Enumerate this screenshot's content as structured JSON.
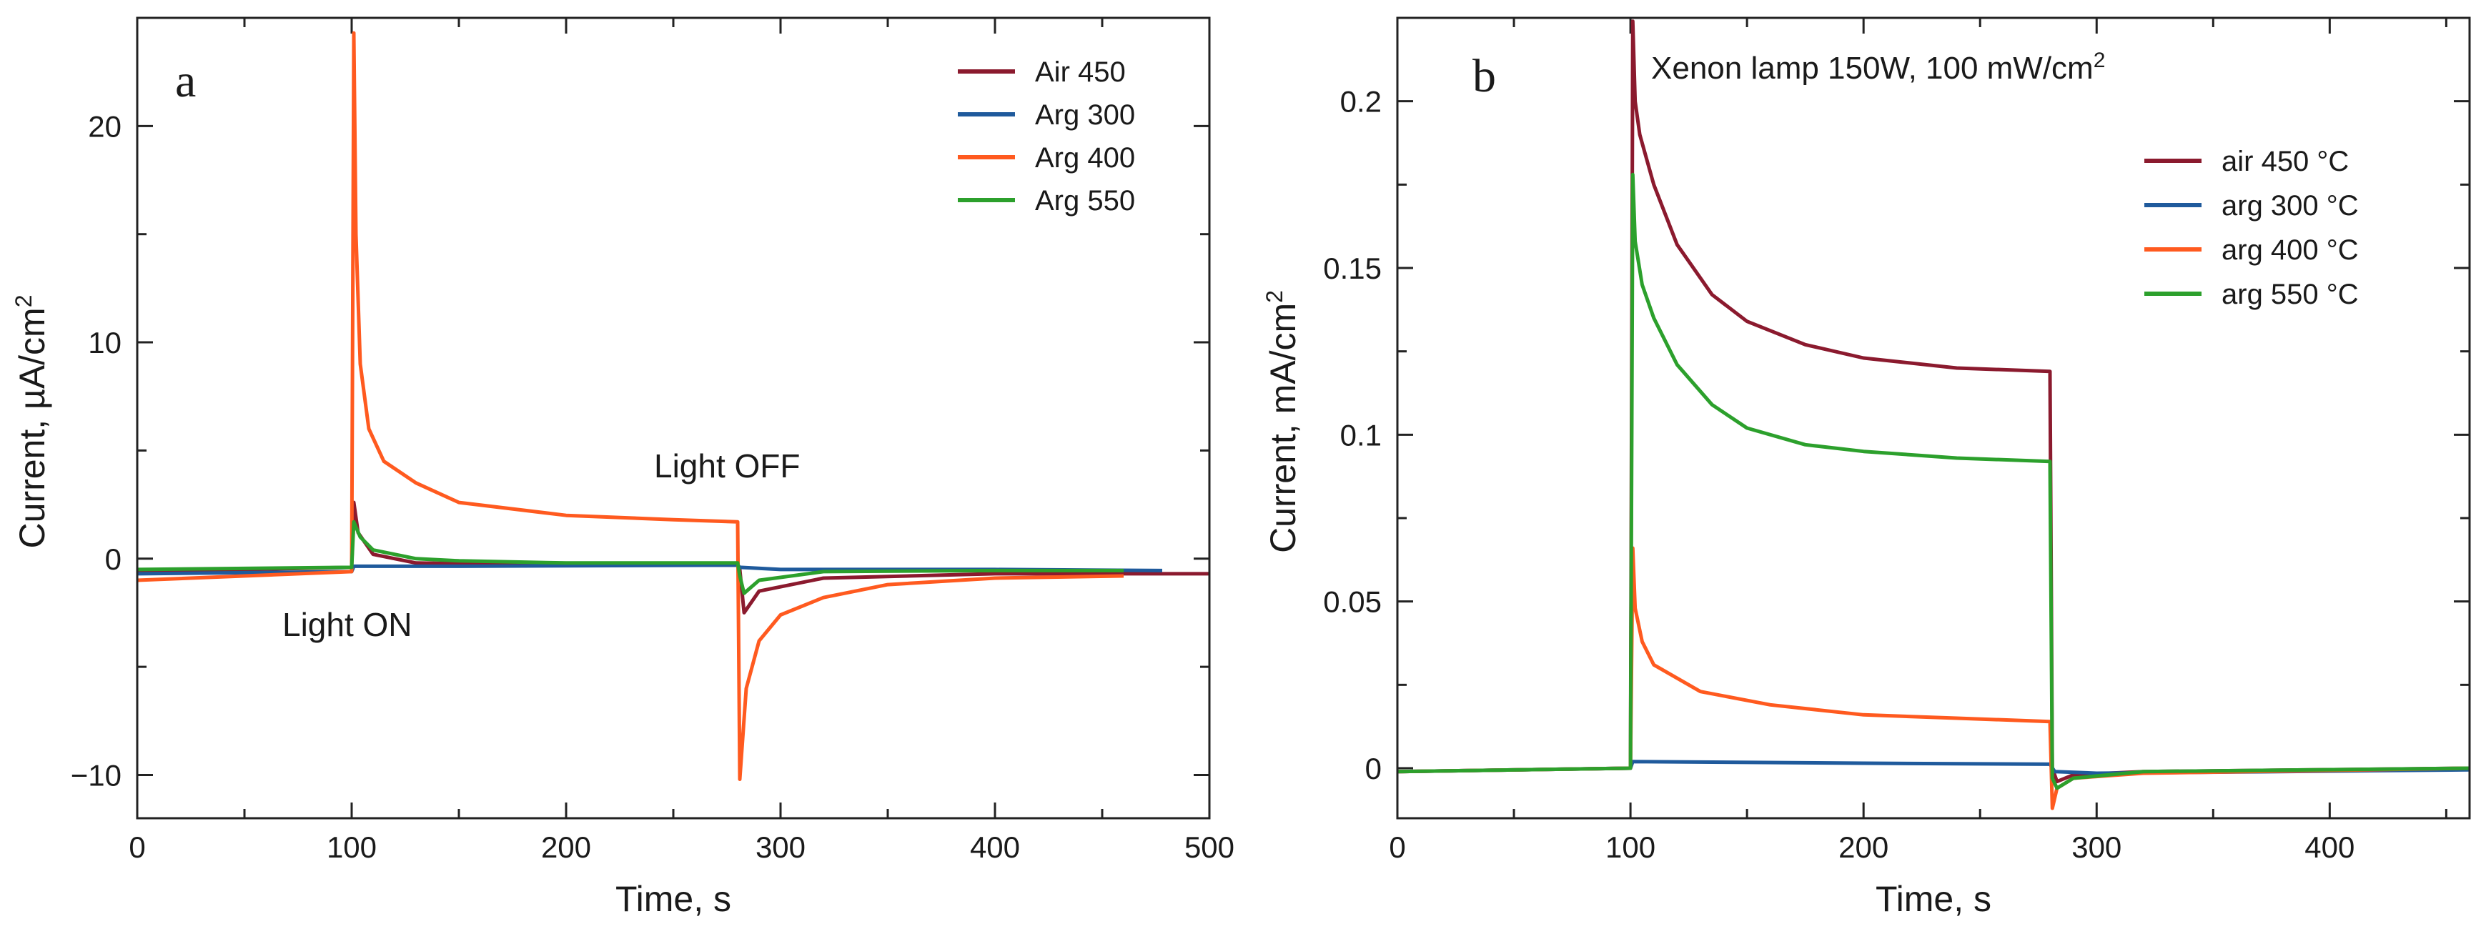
{
  "chart_data": [
    {
      "type": "line",
      "panel_label": "a",
      "title": "",
      "xlabel": "Time, s",
      "ylabel": "Current, µA/cm",
      "ylabel_sup": "2",
      "xlim": [
        0,
        500
      ],
      "ylim": [
        -12,
        25
      ],
      "xticks": [
        0,
        100,
        200,
        300,
        400,
        500
      ],
      "xtick_labels": [
        "0",
        "100",
        "200",
        "300",
        "400",
        "500"
      ],
      "yticks": [
        -10,
        0,
        10,
        20
      ],
      "ytick_labels": [
        "−10",
        "0",
        "10",
        "20"
      ],
      "grid": false,
      "legend_position": "top-right",
      "annotations": [
        {
          "text": "Light ON",
          "x": 92,
          "y": -3
        },
        {
          "text": "Light OFF",
          "x": 215,
          "y": 4
        }
      ],
      "series": [
        {
          "name": "Air 450",
          "color": "#8b1a2e",
          "points": [
            [
              0,
              -0.6
            ],
            [
              100,
              -0.4
            ],
            [
              101,
              2.6
            ],
            [
              103,
              1.2
            ],
            [
              110,
              0.2
            ],
            [
              130,
              -0.2
            ],
            [
              200,
              -0.3
            ],
            [
              280,
              -0.3
            ],
            [
              281,
              -0.5
            ],
            [
              283,
              -2.5
            ],
            [
              290,
              -1.5
            ],
            [
              320,
              -0.9
            ],
            [
              400,
              -0.7
            ],
            [
              500,
              -0.7
            ]
          ]
        },
        {
          "name": "Arg 300",
          "color": "#1f5a9c",
          "points": [
            [
              0,
              -0.7
            ],
            [
              100,
              -0.6
            ],
            [
              101,
              -0.35
            ],
            [
              150,
              -0.35
            ],
            [
              280,
              -0.3
            ],
            [
              281,
              -0.4
            ],
            [
              300,
              -0.5
            ],
            [
              400,
              -0.5
            ],
            [
              478,
              -0.55
            ]
          ]
        },
        {
          "name": "Arg 400",
          "color": "#ff5a1f",
          "points": [
            [
              0,
              -1.0
            ],
            [
              100,
              -0.6
            ],
            [
              101,
              24.3
            ],
            [
              102,
              15.0
            ],
            [
              104,
              9.0
            ],
            [
              108,
              6.0
            ],
            [
              115,
              4.5
            ],
            [
              130,
              3.5
            ],
            [
              150,
              2.6
            ],
            [
              200,
              2.0
            ],
            [
              250,
              1.8
            ],
            [
              280,
              1.7
            ],
            [
              281,
              -10.2
            ],
            [
              284,
              -6.0
            ],
            [
              290,
              -3.8
            ],
            [
              300,
              -2.6
            ],
            [
              320,
              -1.8
            ],
            [
              350,
              -1.2
            ],
            [
              400,
              -0.9
            ],
            [
              460,
              -0.8
            ]
          ]
        },
        {
          "name": "Arg 550",
          "color": "#2ca02c",
          "points": [
            [
              0,
              -0.5
            ],
            [
              100,
              -0.4
            ],
            [
              101,
              1.7
            ],
            [
              104,
              1.0
            ],
            [
              110,
              0.4
            ],
            [
              130,
              0.0
            ],
            [
              150,
              -0.1
            ],
            [
              200,
              -0.2
            ],
            [
              280,
              -0.2
            ],
            [
              281,
              -0.8
            ],
            [
              283,
              -1.6
            ],
            [
              290,
              -1.0
            ],
            [
              320,
              -0.6
            ],
            [
              400,
              -0.55
            ],
            [
              460,
              -0.55
            ]
          ]
        }
      ]
    },
    {
      "type": "line",
      "panel_label": "b",
      "title": "Xenon lamp 150W, 100 mW/cm",
      "title_sup": "2",
      "xlabel": "Time, s",
      "ylabel": "Current, mA/cm",
      "ylabel_sup": "2",
      "xlim": [
        0,
        460
      ],
      "ylim": [
        -0.015,
        0.225
      ],
      "xticks": [
        0,
        100,
        200,
        300,
        400
      ],
      "xtick_labels": [
        "0",
        "100",
        "200",
        "300",
        "400"
      ],
      "yticks": [
        0,
        0.05,
        0.1,
        0.15,
        0.2
      ],
      "ytick_labels": [
        "0",
        "0.05",
        "0.1",
        "0.15",
        "0.2"
      ],
      "grid": false,
      "legend_position": "top-right",
      "annotations": [],
      "series": [
        {
          "name": "air 450 °C",
          "color": "#8b1a2e",
          "points": [
            [
              0,
              -0.001
            ],
            [
              100,
              0.0
            ],
            [
              101,
              0.224
            ],
            [
              102,
              0.2
            ],
            [
              104,
              0.19
            ],
            [
              110,
              0.175
            ],
            [
              120,
              0.157
            ],
            [
              135,
              0.142
            ],
            [
              150,
              0.134
            ],
            [
              175,
              0.127
            ],
            [
              200,
              0.123
            ],
            [
              240,
              0.12
            ],
            [
              280,
              0.119
            ],
            [
              281,
              0.0
            ],
            [
              283,
              -0.004
            ],
            [
              290,
              -0.002
            ],
            [
              320,
              -0.001
            ],
            [
              460,
              0.0
            ]
          ]
        },
        {
          "name": "arg 300 °C",
          "color": "#1f5a9c",
          "points": [
            [
              0,
              -0.001
            ],
            [
              100,
              0.0
            ],
            [
              101,
              0.002
            ],
            [
              200,
              0.0015
            ],
            [
              280,
              0.0012
            ],
            [
              282,
              -0.001
            ],
            [
              300,
              -0.0015
            ],
            [
              460,
              -0.0005
            ]
          ]
        },
        {
          "name": "arg 400 °C",
          "color": "#ff5a1f",
          "points": [
            [
              0,
              -0.001
            ],
            [
              100,
              0.0
            ],
            [
              101,
              0.066
            ],
            [
              102,
              0.048
            ],
            [
              105,
              0.038
            ],
            [
              110,
              0.031
            ],
            [
              130,
              0.023
            ],
            [
              160,
              0.019
            ],
            [
              200,
              0.016
            ],
            [
              240,
              0.015
            ],
            [
              280,
              0.014
            ],
            [
              281,
              -0.012
            ],
            [
              283,
              -0.006
            ],
            [
              290,
              -0.003
            ],
            [
              320,
              -0.0015
            ],
            [
              460,
              0.0
            ]
          ]
        },
        {
          "name": "arg 550 °C",
          "color": "#2ca02c",
          "points": [
            [
              0,
              -0.001
            ],
            [
              100,
              0.0
            ],
            [
              101,
              0.178
            ],
            [
              102,
              0.158
            ],
            [
              105,
              0.145
            ],
            [
              110,
              0.135
            ],
            [
              120,
              0.121
            ],
            [
              135,
              0.109
            ],
            [
              150,
              0.102
            ],
            [
              175,
              0.097
            ],
            [
              200,
              0.095
            ],
            [
              240,
              0.093
            ],
            [
              280,
              0.092
            ],
            [
              281,
              -0.003
            ],
            [
              283,
              -0.006
            ],
            [
              290,
              -0.003
            ],
            [
              320,
              -0.001
            ],
            [
              460,
              0.0
            ]
          ]
        }
      ]
    }
  ]
}
